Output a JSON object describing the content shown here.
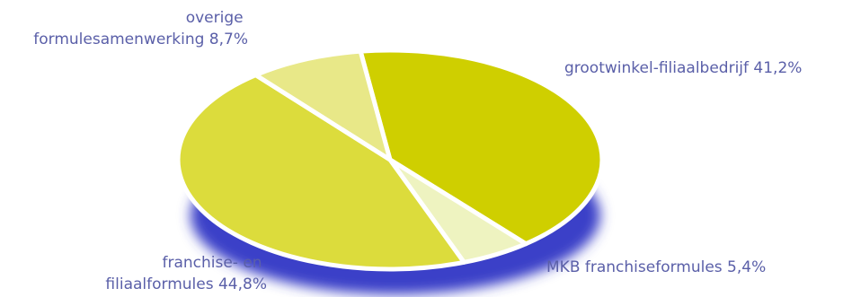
{
  "chart_data": {
    "type": "pie",
    "title": "",
    "slices": [
      {
        "label_lines": [
          "grootwinkel-filiaalbedrijf 41,2%"
        ],
        "value": 41.2,
        "color": "#cfcf00"
      },
      {
        "label_lines": [
          "MKB franchiseformules 5,4%"
        ],
        "value": 5.4,
        "color": "#eef3c0"
      },
      {
        "label_lines": [
          "franchise- en",
          "filiaalformules 44,8%"
        ],
        "value": 44.8,
        "color": "#dcdc3c"
      },
      {
        "label_lines": [
          "overige",
          "formulesamenwerking 8,7%"
        ],
        "value": 8.7,
        "color": "#e8e888"
      }
    ],
    "shadow_color": "#3a3fc8"
  }
}
